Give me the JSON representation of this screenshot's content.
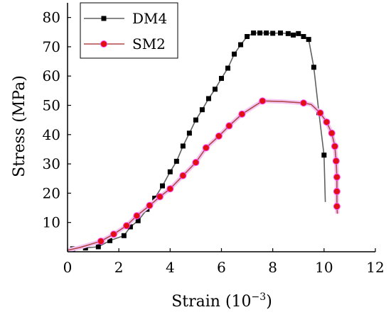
{
  "chart_data": {
    "type": "line",
    "xlabel": "Strain (10",
    "xlabel_sup": "−3",
    "xlabel_close": ")",
    "ylabel": "Stress (MPa)",
    "xlim": [
      0,
      12
    ],
    "ylim": [
      0,
      85
    ],
    "xticks": [
      "0",
      "2",
      "4",
      "6",
      "8",
      "10",
      "12"
    ],
    "yticks": [
      "10",
      "20",
      "30",
      "40",
      "50",
      "60",
      "70",
      "80"
    ],
    "grid": false,
    "legend_position": "top-left",
    "series": [
      {
        "name": "DM4",
        "color": "#000000",
        "line_color": "#606060",
        "marker": "square",
        "x": [
          0.0,
          0.2,
          0.7,
          1.2,
          1.65,
          2.2,
          2.45,
          2.75,
          3.1,
          3.4,
          3.7,
          4.0,
          4.25,
          4.5,
          4.75,
          5.0,
          5.25,
          5.5,
          5.75,
          6.0,
          6.25,
          6.5,
          6.75,
          7.0,
          7.25,
          7.5,
          7.75,
          8.0,
          8.3,
          8.6,
          8.8,
          9.0,
          9.2,
          9.4,
          9.6,
          9.8,
          10.0,
          10.05
        ],
        "y": [
          0.5,
          1.0,
          1.3,
          1.7,
          3.8,
          5.5,
          8.5,
          10.6,
          14.5,
          18.3,
          22.5,
          27.3,
          30.9,
          36.1,
          40.5,
          45.0,
          48.5,
          52.3,
          55.5,
          59.2,
          62.7,
          67.5,
          70.7,
          73.5,
          74.7,
          74.7,
          74.7,
          74.6,
          74.7,
          74.5,
          74.0,
          74.5,
          73.5,
          72.5,
          63.0,
          47.5,
          33.0,
          17.0
        ],
        "marker_indices": [
          1,
          2,
          3,
          4,
          5,
          6,
          7,
          8,
          9,
          10,
          11,
          12,
          13,
          14,
          15,
          16,
          17,
          18,
          19,
          20,
          21,
          22,
          23,
          24,
          25,
          26,
          27,
          28,
          29,
          30,
          31,
          32,
          33,
          34,
          35,
          36
        ]
      },
      {
        "name": "SM2",
        "color": "#e01010",
        "line_color": "#b04848",
        "marker": "circle",
        "x": [
          0.0,
          0.5,
          1.3,
          1.8,
          2.3,
          2.7,
          3.2,
          3.6,
          4.0,
          4.5,
          5.0,
          5.4,
          5.9,
          6.3,
          6.8,
          7.6,
          8.4,
          9.2,
          9.5,
          9.85,
          10.1,
          10.3,
          10.42,
          10.47,
          10.5,
          10.5,
          10.5,
          10.52
        ],
        "y": [
          0.5,
          1.5,
          3.6,
          6.0,
          8.9,
          12.3,
          15.8,
          18.8,
          21.5,
          26.0,
          30.5,
          35.5,
          39.5,
          43.0,
          47.0,
          51.5,
          51.3,
          50.8,
          50.3,
          47.4,
          44.3,
          40.5,
          36.0,
          31.0,
          25.5,
          20.6,
          15.5,
          13.0
        ],
        "marker_indices": [
          2,
          3,
          4,
          5,
          6,
          7,
          8,
          9,
          10,
          11,
          12,
          13,
          14,
          15,
          17,
          19,
          20,
          21,
          22,
          23,
          24,
          25,
          26
        ]
      }
    ]
  }
}
